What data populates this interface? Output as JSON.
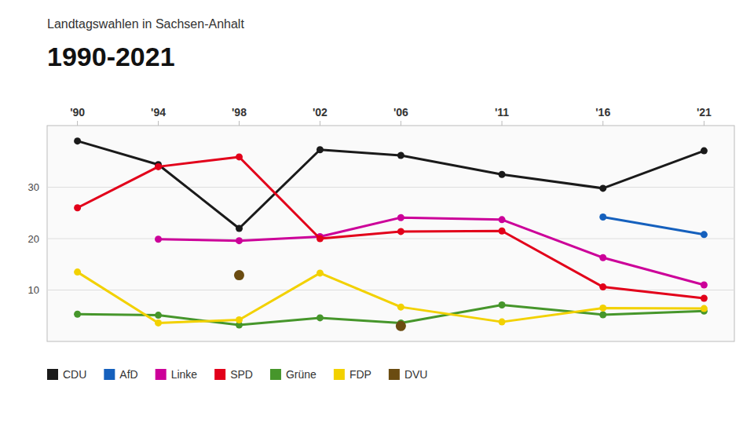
{
  "chart_data": {
    "type": "line",
    "subtitle": "Landtagswahlen in Sachsen-Anhalt",
    "title": "1990-2021",
    "x": [
      1990,
      1994,
      1998,
      2002,
      2006,
      2011,
      2016,
      2021
    ],
    "xlim": [
      1988.5,
      2022.5
    ],
    "xticks": [
      {
        "value": 1990,
        "label": "'90"
      },
      {
        "value": 1994,
        "label": "'94"
      },
      {
        "value": 1998,
        "label": "'98"
      },
      {
        "value": 2002,
        "label": "'02"
      },
      {
        "value": 2006,
        "label": "'06"
      },
      {
        "value": 2011,
        "label": "'11"
      },
      {
        "value": 2016,
        "label": "'16"
      },
      {
        "value": 2021,
        "label": "'21"
      }
    ],
    "ylim": [
      0,
      42
    ],
    "yticks": [
      10,
      20,
      30
    ],
    "grid": true,
    "legend": "bottom",
    "series": [
      {
        "name": "CDU",
        "color": "#1a1a1a",
        "marker": "circle",
        "line_style": "solid",
        "values": [
          39.0,
          34.4,
          22.0,
          37.3,
          36.2,
          32.5,
          29.8,
          37.1
        ]
      },
      {
        "name": "AfD",
        "color": "#1560bd",
        "marker": "circle",
        "line_style": "solid",
        "values": [
          null,
          null,
          null,
          null,
          null,
          null,
          24.2,
          20.8
        ]
      },
      {
        "name": "Linke",
        "color": "#cc0099",
        "marker": "circle",
        "line_style": "solid",
        "values": [
          null,
          19.9,
          19.6,
          20.4,
          24.1,
          23.7,
          16.3,
          11.0
        ]
      },
      {
        "name": "SPD",
        "color": "#e2001a",
        "marker": "circle",
        "line_style": "solid",
        "values": [
          26.0,
          34.0,
          35.9,
          20.0,
          21.4,
          21.5,
          10.6,
          8.4
        ]
      },
      {
        "name": "Grüne",
        "color": "#46962b",
        "marker": "circle",
        "line_style": "solid",
        "values": [
          5.3,
          5.1,
          3.2,
          4.6,
          3.6,
          7.1,
          5.2,
          5.9
        ]
      },
      {
        "name": "FDP",
        "color": "#f2d100",
        "marker": "circle",
        "line_style": "solid",
        "values": [
          13.5,
          3.6,
          4.2,
          13.3,
          6.7,
          3.8,
          6.5,
          6.4
        ]
      },
      {
        "name": "DVU",
        "color": "#6b4c11",
        "marker": "circle",
        "line_style": "none",
        "values": [
          null,
          null,
          12.9,
          null,
          3.0,
          null,
          null,
          null
        ]
      }
    ]
  }
}
